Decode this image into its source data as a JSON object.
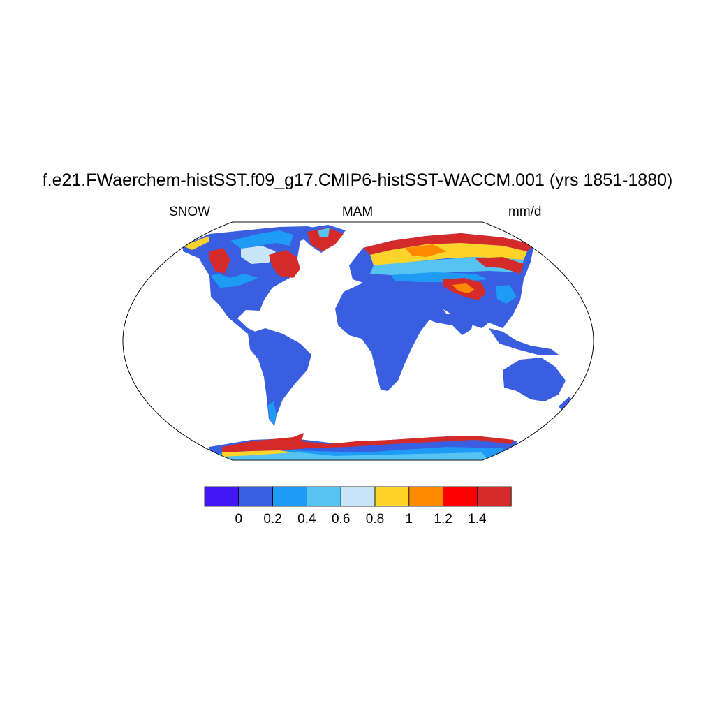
{
  "title": "f.e21.FWaerchem-histSST.f09_g17.CMIP6-histSST-WACCM.001 (yrs 1851-1880)",
  "left_label": "SNOW",
  "center_label": "MAM",
  "right_label": "mm/d",
  "colorbar": {
    "colors": [
      "#4316f5",
      "#3a5ee0",
      "#1e9cf5",
      "#56c3f2",
      "#c9e6f8",
      "#fed42b",
      "#ff8a00",
      "#ff0000",
      "#d42a2a"
    ],
    "labels": [
      "0",
      "0.2",
      "0.4",
      "0.6",
      "0.8",
      "1",
      "1.2",
      "1.4"
    ]
  }
}
